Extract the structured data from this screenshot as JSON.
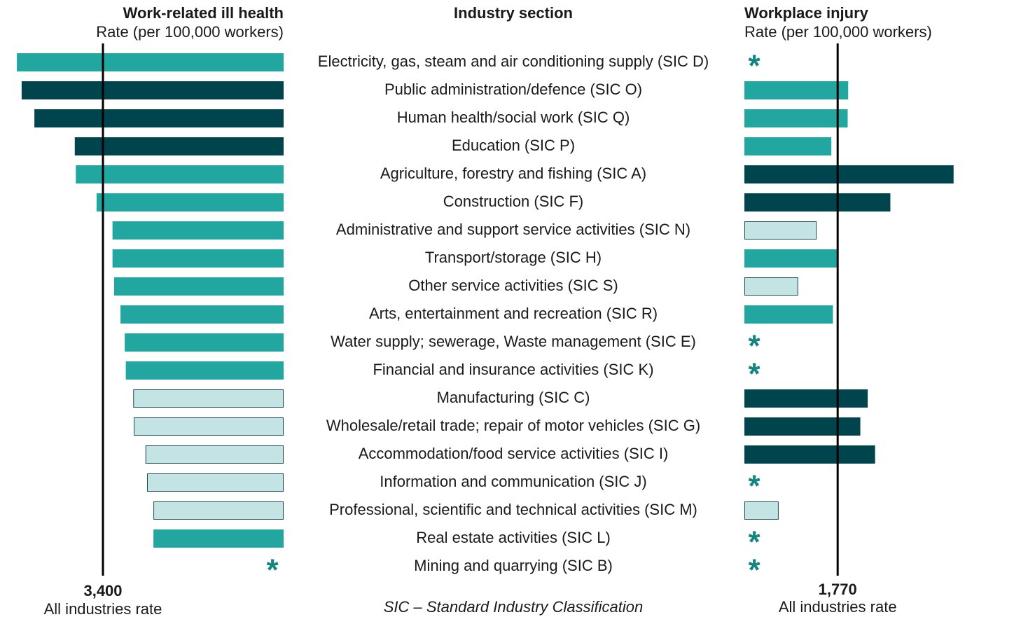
{
  "chart_data": {
    "type": "bar",
    "orientation": "horizontal",
    "title": "Industry section",
    "note": "SIC – Standard Industry Classification",
    "missing_label": "*",
    "categories": [
      "Electricity, gas, steam and air conditioning supply (SIC D)",
      "Public administration/defence (SIC O)",
      "Human health/social work (SIC Q)",
      "Education (SIC P)",
      "Agriculture, forestry and fishing (SIC A)",
      "Construction (SIC F)",
      "Administrative and support service activities (SIC N)",
      "Transport/storage (SIC H)",
      "Other service activities (SIC S)",
      "Arts, entertainment and recreation (SIC R)",
      "Water supply; sewerage, Waste management (SIC E)",
      "Financial and insurance activities (SIC K)",
      "Manufacturing (SIC C)",
      "Wholesale/retail trade; repair of motor vehicles (SIC G)",
      "Accommodation/food service activities (SIC I)",
      "Information and communication (SIC J)",
      "Professional, scientific and technical activities (SIC M)",
      "Real estate activities (SIC L)",
      "Mining and quarrying (SIC B)"
    ],
    "series": [
      {
        "name": "Work-related ill health",
        "axis_label": "Rate (per 100,000 workers)",
        "direction": "left",
        "xlim": [
          0,
          5100
        ],
        "values": [
          5020,
          4930,
          4690,
          3930,
          3910,
          3520,
          3220,
          3220,
          3190,
          3070,
          2990,
          2970,
          2830,
          2820,
          2600,
          2570,
          2450,
          2450,
          null
        ],
        "colors": [
          "#22a6a0",
          "#00444e",
          "#00444e",
          "#00444e",
          "#22a6a0",
          "#22a6a0",
          "#22a6a0",
          "#22a6a0",
          "#22a6a0",
          "#22a6a0",
          "#22a6a0",
          "#22a6a0",
          "#c3e4e3",
          "#c3e4e3",
          "#c3e4e3",
          "#c3e4e3",
          "#c3e4e3",
          "#22a6a0",
          null
        ],
        "reference": {
          "value": 3400,
          "label": "3,400",
          "text": "All industries rate"
        }
      },
      {
        "name": "Workplace injury",
        "axis_label": "Rate (per 100,000 workers)",
        "direction": "right",
        "xlim": [
          0,
          4000
        ],
        "values": [
          null,
          1970,
          1960,
          1650,
          3970,
          2770,
          1370,
          1760,
          1020,
          1680,
          null,
          null,
          2340,
          2200,
          2480,
          null,
          650,
          null,
          null
        ],
        "colors": [
          null,
          "#22a6a0",
          "#22a6a0",
          "#22a6a0",
          "#00444e",
          "#00444e",
          "#c3e4e3",
          "#22a6a0",
          "#c3e4e3",
          "#22a6a0",
          null,
          null,
          "#00444e",
          "#00444e",
          "#00444e",
          null,
          "#c3e4e3",
          null,
          null
        ],
        "reference": {
          "value": 1770,
          "label": "1,770",
          "text": "All industries rate"
        }
      }
    ]
  }
}
